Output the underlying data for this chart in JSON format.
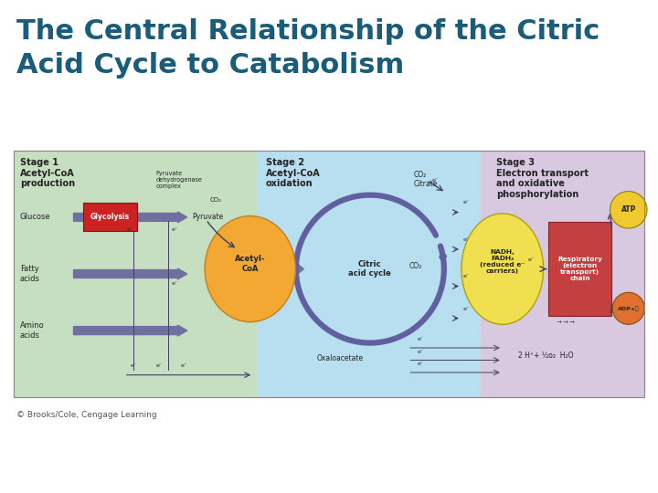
{
  "title_line1": "The Central Relationship of the Citric",
  "title_line2": "Acid Cycle to Catabolism",
  "title_color": "#1a5c7a",
  "title_fontsize": 22,
  "background_color": "#ffffff",
  "copyright_text": "© Brooks/Cole, Cengage Learning",
  "copyright_fontsize": 6.5,
  "stage1_color": "#c5dfc0",
  "stage2_color": "#b8dff0",
  "stage3_color": "#d8c8e0",
  "diagram_bg": "#e8e8d8",
  "acetyl_coa_color": "#f2a832",
  "nadh_color": "#f0e050",
  "respiratory_color": "#c44040",
  "atp_color": "#f0c830",
  "adp_color": "#e07030",
  "glycolysis_fill": "#cc2222",
  "glycolysis_border": "#881111",
  "arrow_color": "#404060",
  "purple_arrow": "#6060a0",
  "input_bar_color": "#7070a0",
  "stage_font": 7.0,
  "label_font": 6.0,
  "small_font": 5.0
}
